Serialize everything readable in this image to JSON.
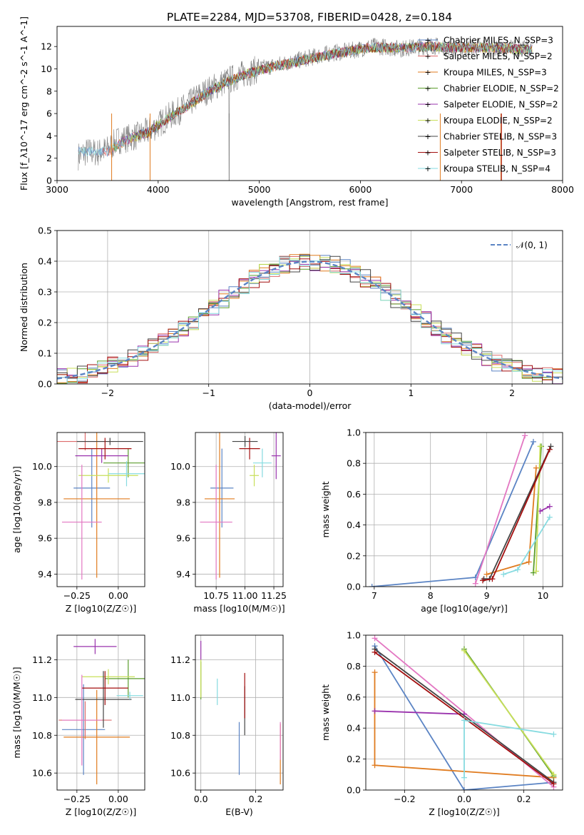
{
  "figure_title": "PLATE=2284, MJD=53708, FIBERID=0428, z=0.184",
  "chart_data": [
    {
      "id": "spectrum",
      "type": "line",
      "title": "PLATE=2284, MJD=53708, FIBERID=0428, z=0.184",
      "xlabel": "wavelength [Angstrom, rest frame]",
      "ylabel": "Flux [f_λ10^-17 erg cm^-2 s^-1 A^-1]",
      "xlim": [
        3000,
        8000
      ],
      "ylim": [
        0,
        13.8
      ],
      "xticks": [
        "3000",
        "4000",
        "5000",
        "6000",
        "7000",
        "8000"
      ],
      "yticks": [
        "0",
        "2",
        "4",
        "6",
        "8",
        "10",
        "12"
      ],
      "grid": false,
      "legend": "upper-right",
      "data_series": {
        "name": "",
        "color": "#808080",
        "x": [
          3210,
          3300,
          3400,
          3500,
          3600,
          3700,
          3800,
          3900,
          4000,
          4100,
          4200,
          4300,
          4400,
          4500,
          4600,
          4700,
          4800,
          4900,
          5000,
          5100,
          5200,
          5300,
          5400,
          5500,
          5600,
          5700,
          5800,
          5900,
          6000,
          6100,
          6200,
          6300,
          6400,
          6500,
          6600,
          6700,
          6800,
          6900,
          7000,
          7100,
          7200,
          7300,
          7400,
          7500,
          7600,
          7700
        ],
        "y": [
          2.2,
          2.6,
          2.5,
          2.8,
          3.6,
          3.8,
          4.0,
          4.4,
          5.0,
          5.7,
          6.2,
          6.8,
          7.6,
          8.1,
          8.6,
          9.0,
          9.4,
          9.7,
          10.0,
          10.2,
          10.4,
          10.6,
          10.8,
          11.0,
          11.2,
          11.4,
          11.5,
          11.6,
          11.8,
          12.0,
          12.0,
          11.9,
          11.8,
          11.9,
          12.0,
          12.1,
          12.0,
          11.9,
          11.8,
          11.9,
          12.0,
          11.8,
          11.8,
          11.9,
          11.8,
          11.7
        ]
      },
      "model_x": [
        3500,
        3700,
        3900,
        4100,
        4300,
        4500,
        4700,
        4900,
        5100,
        5300,
        5500,
        5700,
        5900,
        6100,
        6300,
        6500,
        6700,
        6900,
        7100,
        7300,
        7500,
        7700
      ],
      "model_y": [
        2.6,
        3.7,
        4.3,
        5.6,
        6.7,
        8.0,
        8.9,
        9.6,
        10.1,
        10.5,
        10.9,
        11.3,
        11.6,
        11.9,
        11.9,
        11.9,
        12.0,
        11.9,
        11.9,
        11.9,
        11.8,
        11.7
      ],
      "legend_entries": [
        {
          "label": "Chabrier MILES, N_SSP=3",
          "color": "#5b84c4"
        },
        {
          "label": "Salpeter MILES, N_SSP=2",
          "color": "#dd6b6b"
        },
        {
          "label": "Kroupa MILES, N_SSP=3",
          "color": "#e07b1f"
        },
        {
          "label": "Chabrier ELODIE, N_SSP=2",
          "color": "#5b9d2c"
        },
        {
          "label": "Salpeter ELODIE, N_SSP=2",
          "color": "#9a33ad"
        },
        {
          "label": "Kroupa ELODIE, N_SSP=2",
          "color": "#c8df5a"
        },
        {
          "label": "Chabrier STELIB, N_SSP=3",
          "color": "#444444"
        },
        {
          "label": "Salpeter STELIB, N_SSP=3",
          "color": "#a30f0f"
        },
        {
          "label": "Kroupa STELIB, N_SSP=4",
          "color": "#86dbe0"
        }
      ]
    },
    {
      "id": "residuals",
      "type": "line",
      "xlabel": "(data-model)/error",
      "ylabel": "Normed distribution",
      "xlim": [
        -2.5,
        2.5
      ],
      "ylim": [
        0,
        0.5
      ],
      "xticks": [
        "−2",
        "−1",
        "0",
        "1",
        "2"
      ],
      "yticks": [
        "0.0",
        "0.1",
        "0.2",
        "0.3",
        "0.4",
        "0.5"
      ],
      "grid": true,
      "legend": "upper-right",
      "legend_entries": [
        {
          "label": "𝒩(0, 1)",
          "color": "#5b84c4",
          "dashed": true
        }
      ]
    },
    {
      "id": "age-z",
      "type": "scatter",
      "xlabel": "Z [log10(Z/Z☉)]",
      "ylabel": "age  [log10(age/yr)]",
      "xlim": [
        -0.37,
        0.16
      ],
      "ylim": [
        9.33,
        10.19
      ],
      "xticks": [
        "−0.25",
        "0.00"
      ],
      "yticks": [
        "9.4",
        "9.6",
        "9.8",
        "10.0"
      ],
      "grid": true,
      "points": [
        {
          "x": -0.16,
          "y": 9.88,
          "xerr": 0.11,
          "yerr": 0.22,
          "color": "#5b84c4"
        },
        {
          "x": -0.2,
          "y": 10.14,
          "xerr": 0.17,
          "yerr": 0.05,
          "color": "#dd6b6b"
        },
        {
          "x": -0.13,
          "y": 9.82,
          "xerr": 0.2,
          "yerr": 0.44,
          "color": "#e07b1f"
        },
        {
          "x": 0.06,
          "y": 10.02,
          "xerr": 0.15,
          "yerr": 0.08,
          "color": "#5b9d2c"
        },
        {
          "x": -0.1,
          "y": 10.06,
          "xerr": 0.16,
          "yerr": 0.04,
          "color": "#9a33ad"
        },
        {
          "x": -0.06,
          "y": 9.95,
          "xerr": 0.18,
          "yerr": 0.04,
          "color": "#c8df5a"
        },
        {
          "x": -0.05,
          "y": 10.14,
          "xerr": 0.2,
          "yerr": 0.02,
          "color": "#444444"
        },
        {
          "x": -0.08,
          "y": 10.1,
          "xerr": 0.16,
          "yerr": 0.06,
          "color": "#a30f0f"
        },
        {
          "x": 0.05,
          "y": 9.96,
          "xerr": 0.11,
          "yerr": 0.07,
          "color": "#86dbe0"
        },
        {
          "x": -0.22,
          "y": 9.69,
          "xerr": 0.12,
          "yerr": 0.32,
          "color": "#e377c2"
        }
      ]
    },
    {
      "id": "age-mass",
      "type": "scatter",
      "xlabel": "mass [log10(M/M☉)]",
      "ylabel": "",
      "xlim": [
        10.57,
        11.33
      ],
      "ylim": [
        9.33,
        10.19
      ],
      "xticks": [
        "10.75",
        "11.00",
        "11.25"
      ],
      "yticks": [
        "9.4",
        "9.6",
        "9.8",
        "10.0"
      ],
      "grid": true,
      "points": [
        {
          "x": 10.8,
          "y": 9.88,
          "xerr": 0.1,
          "yerr": 0.22,
          "color": "#5b84c4"
        },
        {
          "x": 10.78,
          "y": 9.82,
          "xerr": 0.13,
          "yerr": 0.44,
          "color": "#e07b1f"
        },
        {
          "x": 11.04,
          "y": 10.1,
          "xerr": 0.09,
          "yerr": 0.06,
          "color": "#a30f0f"
        },
        {
          "x": 11.0,
          "y": 10.14,
          "xerr": 0.11,
          "yerr": 0.03,
          "color": "#444444"
        },
        {
          "x": 11.08,
          "y": 9.95,
          "xerr": 0.04,
          "yerr": 0.06,
          "color": "#c8df5a"
        },
        {
          "x": 11.27,
          "y": 10.06,
          "xerr": 0.04,
          "yerr": 0.13,
          "color": "#9a33ad"
        },
        {
          "x": 11.15,
          "y": 10.02,
          "xerr": 0.08,
          "yerr": 0.08,
          "color": "#86dbe0"
        },
        {
          "x": 10.75,
          "y": 9.69,
          "xerr": 0.14,
          "yerr": 0.32,
          "color": "#e377c2"
        }
      ]
    },
    {
      "id": "weight-age",
      "type": "line",
      "xlabel": "age  [log10(age/yr)]",
      "ylabel": "mass weight",
      "xlim": [
        6.85,
        10.35
      ],
      "ylim": [
        0,
        1.0
      ],
      "xticks": [
        "7",
        "8",
        "9",
        "10"
      ],
      "yticks": [
        "0.0",
        "0.2",
        "0.4",
        "0.6",
        "0.8",
        "1.0"
      ],
      "grid": true,
      "series": [
        {
          "x": [
            6.96,
            8.8,
            9.83
          ],
          "y": [
            0.0,
            0.06,
            0.94
          ],
          "color": "#5b84c4"
        },
        {
          "x": [
            9.0,
            9.75,
            9.88
          ],
          "y": [
            0.08,
            0.16,
            0.77
          ],
          "color": "#e07b1f"
        },
        {
          "x": [
            8.8,
            9.68
          ],
          "y": [
            0.02,
            0.98
          ],
          "color": "#e377c2"
        },
        {
          "x": [
            9.83,
            9.97
          ],
          "y": [
            0.09,
            0.91
          ],
          "color": "#5b9d2c"
        },
        {
          "x": [
            9.95,
            10.12
          ],
          "y": [
            0.49,
            0.52
          ],
          "color": "#9a33ad"
        },
        {
          "x": [
            9.88,
            9.95
          ],
          "y": [
            0.1,
            0.91
          ],
          "color": "#c8df5a"
        },
        {
          "x": [
            8.95,
            9.05,
            10.14
          ],
          "y": [
            0.05,
            0.05,
            0.91
          ],
          "color": "#444444"
        },
        {
          "x": [
            8.93,
            9.1,
            10.12
          ],
          "y": [
            0.04,
            0.05,
            0.89
          ],
          "color": "#a30f0f"
        },
        {
          "x": [
            9.3,
            9.55,
            10.12
          ],
          "y": [
            0.08,
            0.11,
            0.45
          ],
          "color": "#86dbe0"
        }
      ]
    },
    {
      "id": "mass-z",
      "type": "scatter",
      "xlabel": "Z [log10(Z/Z☉)]",
      "ylabel": "mass [log10(M/M☉)]",
      "xlim": [
        -0.37,
        0.16
      ],
      "ylim": [
        10.51,
        11.33
      ],
      "xticks": [
        "−0.25",
        "0.00"
      ],
      "yticks": [
        "10.6",
        "10.8",
        "11.0",
        "11.2"
      ],
      "grid": true,
      "points": [
        {
          "x": -0.21,
          "y": 10.83,
          "xerr": 0.13,
          "yerr": 0.24,
          "color": "#5b84c4"
        },
        {
          "x": -0.2,
          "y": 10.88,
          "xerr": 0.16,
          "yerr": 0.1,
          "color": "#dd6b6b"
        },
        {
          "x": -0.13,
          "y": 10.79,
          "xerr": 0.2,
          "yerr": 0.25,
          "color": "#e07b1f"
        },
        {
          "x": 0.06,
          "y": 11.1,
          "xerr": 0.14,
          "yerr": 0.1,
          "color": "#5b9d2c"
        },
        {
          "x": -0.14,
          "y": 11.27,
          "xerr": 0.13,
          "yerr": 0.04,
          "color": "#9a33ad"
        },
        {
          "x": -0.06,
          "y": 11.11,
          "xerr": 0.16,
          "yerr": 0.04,
          "color": "#c8df5a"
        },
        {
          "x": -0.09,
          "y": 10.99,
          "xerr": 0.17,
          "yerr": 0.15,
          "color": "#444444"
        },
        {
          "x": -0.08,
          "y": 11.05,
          "xerr": 0.14,
          "yerr": 0.09,
          "color": "#a30f0f"
        },
        {
          "x": 0.07,
          "y": 11.01,
          "xerr": 0.08,
          "yerr": 0.02,
          "color": "#86dbe0"
        },
        {
          "x": -0.22,
          "y": 10.88,
          "xerr": 0.12,
          "yerr": 0.24,
          "color": "#e377c2"
        }
      ]
    },
    {
      "id": "mass-ebv",
      "type": "scatter",
      "xlabel": "E(B-V)",
      "ylabel": "",
      "xlim": [
        -0.02,
        0.3
      ],
      "ylim": [
        10.51,
        11.33
      ],
      "xticks": [
        "0.0",
        "0.2"
      ],
      "yticks": [
        "10.6",
        "10.8",
        "11.0",
        "11.2"
      ],
      "grid": true,
      "points": [
        {
          "x": 0.14,
          "y": 10.73,
          "yerr": 0.14,
          "color": "#5b84c4"
        },
        {
          "x": 0.29,
          "y": 10.7,
          "yerr": 0.16,
          "color": "#e07b1f"
        },
        {
          "x": 0.0,
          "y": 11.09,
          "yerr": 0.1,
          "color": "#5b9d2c"
        },
        {
          "x": 0.0,
          "y": 11.25,
          "yerr": 0.05,
          "color": "#9a33ad"
        },
        {
          "x": 0.0,
          "y": 11.1,
          "yerr": 0.1,
          "color": "#c8df5a"
        },
        {
          "x": 0.16,
          "y": 10.93,
          "yerr": 0.13,
          "color": "#444444"
        },
        {
          "x": 0.16,
          "y": 11.01,
          "yerr": 0.12,
          "color": "#a30f0f"
        },
        {
          "x": 0.06,
          "y": 11.03,
          "yerr": 0.07,
          "color": "#86dbe0"
        },
        {
          "x": 0.29,
          "y": 10.77,
          "yerr": 0.1,
          "color": "#e377c2"
        }
      ]
    },
    {
      "id": "weight-z",
      "type": "line",
      "xlabel": "Z [log10(Z/Z☉)]",
      "ylabel": "mass weight",
      "xlim": [
        -0.33,
        0.33
      ],
      "ylim": [
        0,
        1.0
      ],
      "xticks": [
        "−0.2",
        "0.0",
        "0.2"
      ],
      "yticks": [
        "0.0",
        "0.2",
        "0.4",
        "0.6",
        "0.8",
        "1.0"
      ],
      "grid": true,
      "series": [
        {
          "x": [
            -0.3,
            0.0,
            0.3
          ],
          "y": [
            0.93,
            0.0,
            0.05
          ],
          "color": "#5b84c4"
        },
        {
          "x": [
            -0.3,
            -0.3,
            0.3
          ],
          "y": [
            0.76,
            0.16,
            0.08
          ],
          "color": "#e07b1f"
        },
        {
          "x": [
            -0.3,
            0.3
          ],
          "y": [
            0.98,
            0.02
          ],
          "color": "#e377c2"
        },
        {
          "x": [
            0.0,
            0.3
          ],
          "y": [
            0.91,
            0.09
          ],
          "color": "#5b9d2c"
        },
        {
          "x": [
            -0.3,
            0.0
          ],
          "y": [
            0.51,
            0.49
          ],
          "color": "#9a33ad"
        },
        {
          "x": [
            0.0,
            0.3
          ],
          "y": [
            0.9,
            0.1
          ],
          "color": "#c8df5a"
        },
        {
          "x": [
            -0.3,
            0.3
          ],
          "y": [
            0.91,
            0.05
          ],
          "color": "#444444"
        },
        {
          "x": [
            -0.3,
            0.3
          ],
          "y": [
            0.89,
            0.04
          ],
          "color": "#a30f0f"
        },
        {
          "x": [
            0.0,
            0.0,
            0.3
          ],
          "y": [
            0.08,
            0.45,
            0.36
          ],
          "color": "#86dbe0"
        }
      ]
    }
  ]
}
